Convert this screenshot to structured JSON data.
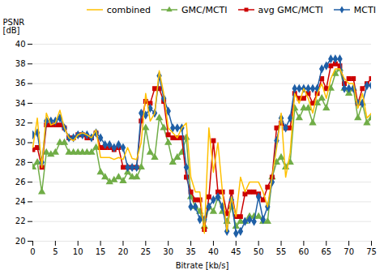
{
  "chart_data": {
    "type": "line",
    "xlabel": "Bitrate [kb/s]",
    "ylabel": "PSNR\n[dB]",
    "xlim": [
      0,
      75
    ],
    "ylim": [
      20,
      40
    ],
    "xticks": [
      0,
      5,
      10,
      15,
      20,
      25,
      30,
      35,
      40,
      45,
      50,
      55,
      60,
      65,
      70,
      75
    ],
    "yticks": [
      20,
      22,
      24,
      26,
      28,
      30,
      32,
      34,
      36,
      38,
      40
    ],
    "grid": true,
    "legend": "upper right",
    "x": [
      0,
      1,
      2,
      3,
      4,
      5,
      6,
      7,
      8,
      9,
      10,
      11,
      12,
      13,
      14,
      15,
      16,
      17,
      18,
      19,
      20,
      21,
      22,
      23,
      24,
      25,
      26,
      27,
      28,
      29,
      30,
      31,
      32,
      33,
      34,
      35,
      36,
      37,
      38,
      39,
      40,
      41,
      42,
      43,
      44,
      45,
      46,
      47,
      48,
      49,
      50,
      51,
      52,
      53,
      54,
      55,
      56,
      57,
      58,
      59,
      60,
      61,
      62,
      63,
      64,
      65,
      66,
      67,
      68,
      69,
      70,
      71,
      72,
      73,
      74,
      75
    ],
    "series": [
      {
        "name": "combined",
        "color": "#FFC000",
        "values": [
          29.5,
          32.5,
          27.5,
          33.0,
          31.8,
          32.0,
          33.3,
          31.5,
          30.5,
          30.2,
          30.8,
          31.0,
          30.8,
          30.5,
          31.3,
          28.5,
          28.5,
          28.5,
          28.3,
          28.5,
          28.3,
          29.5,
          28.4,
          28.3,
          30.0,
          35.0,
          32.2,
          33.0,
          37.3,
          35.0,
          31.5,
          31.0,
          30.5,
          31.5,
          32.0,
          26.5,
          25.0,
          25.0,
          20.8,
          31.5,
          27.0,
          30.0,
          25.0,
          21.0,
          24.5,
          22.5,
          26.5,
          25.0,
          26.0,
          26.0,
          26.0,
          25.0,
          23.5,
          26.5,
          29.5,
          33.0,
          26.5,
          29.0,
          35.0,
          34.0,
          35.5,
          34.5,
          33.0,
          35.0,
          36.0,
          34.5,
          36.5,
          37.5,
          37.5,
          36.5,
          36.0,
          36.0,
          33.5,
          35.0,
          32.5,
          33.0
        ]
      },
      {
        "name": "GMC/MCTI",
        "color": "#70AD47",
        "marker": "triangle",
        "values": [
          27.5,
          28.0,
          25.0,
          29.0,
          28.8,
          29.0,
          30.0,
          30.0,
          29.0,
          29.0,
          29.0,
          29.0,
          29.0,
          29.0,
          29.5,
          27.0,
          26.5,
          26.0,
          26.2,
          26.5,
          26.1,
          27.0,
          26.5,
          26.5,
          27.5,
          31.5,
          29.0,
          28.5,
          32.5,
          31.5,
          30.0,
          28.0,
          28.5,
          29.0,
          30.5,
          24.5,
          23.5,
          23.0,
          21.5,
          23.5,
          23.0,
          24.5,
          23.0,
          22.0,
          23.5,
          21.5,
          22.0,
          22.0,
          22.5,
          22.5,
          22.5,
          22.0,
          22.0,
          26.5,
          28.0,
          28.5,
          27.5,
          28.0,
          33.5,
          32.5,
          33.5,
          33.5,
          32.0,
          34.0,
          34.5,
          33.5,
          35.5,
          37.0,
          37.5,
          35.5,
          35.0,
          35.5,
          32.5,
          34.0,
          32.0,
          32.5
        ]
      },
      {
        "name": "avg GMC/MCTI",
        "color": "#CC0000",
        "marker": "square",
        "values": [
          29.3,
          29.5,
          27.5,
          31.8,
          31.8,
          31.8,
          31.8,
          31.5,
          30.5,
          30.5,
          30.8,
          30.8,
          30.5,
          30.5,
          31.0,
          29.5,
          29.5,
          29.5,
          29.3,
          29.5,
          27.5,
          27.5,
          27.5,
          27.5,
          32.2,
          34.2,
          34.0,
          35.5,
          35.5,
          34.2,
          30.8,
          30.5,
          30.5,
          30.5,
          26.5,
          25.0,
          24.2,
          24.2,
          21.2,
          24.5,
          30.2,
          25.0,
          25.0,
          22.8,
          25.0,
          22.5,
          22.5,
          24.8,
          25.0,
          25.0,
          24.8,
          24.2,
          25.5,
          26.5,
          31.5,
          32.0,
          31.5,
          31.5,
          35.0,
          34.5,
          34.5,
          35.0,
          34.0,
          35.0,
          36.5,
          35.5,
          37.8,
          38.0,
          37.8,
          36.0,
          36.5,
          36.5,
          34.0,
          35.5,
          36.0,
          36.5
        ]
      },
      {
        "name": "MCTI",
        "color": "#1F5FA6",
        "marker": "diamond",
        "values": [
          30.8,
          31.0,
          28.0,
          32.2,
          32.2,
          32.2,
          32.5,
          31.5,
          30.5,
          30.5,
          30.8,
          30.8,
          30.8,
          30.5,
          31.0,
          30.5,
          29.8,
          29.8,
          29.5,
          29.8,
          29.5,
          27.5,
          27.5,
          27.5,
          33.0,
          32.8,
          33.5,
          33.0,
          36.8,
          34.5,
          33.2,
          31.5,
          31.5,
          31.5,
          27.5,
          23.5,
          23.5,
          22.2,
          22.2,
          23.5,
          24.2,
          24.5,
          23.5,
          21.0,
          24.2,
          20.8,
          21.0,
          22.0,
          22.2,
          22.0,
          24.5,
          22.2,
          23.5,
          26.0,
          30.2,
          32.5,
          31.5,
          32.5,
          35.5,
          35.5,
          35.5,
          35.5,
          35.5,
          35.5,
          37.5,
          37.8,
          38.5,
          38.5,
          38.5,
          35.5,
          35.5,
          35.5,
          34.0,
          34.0,
          35.8,
          35.8
        ]
      }
    ]
  }
}
